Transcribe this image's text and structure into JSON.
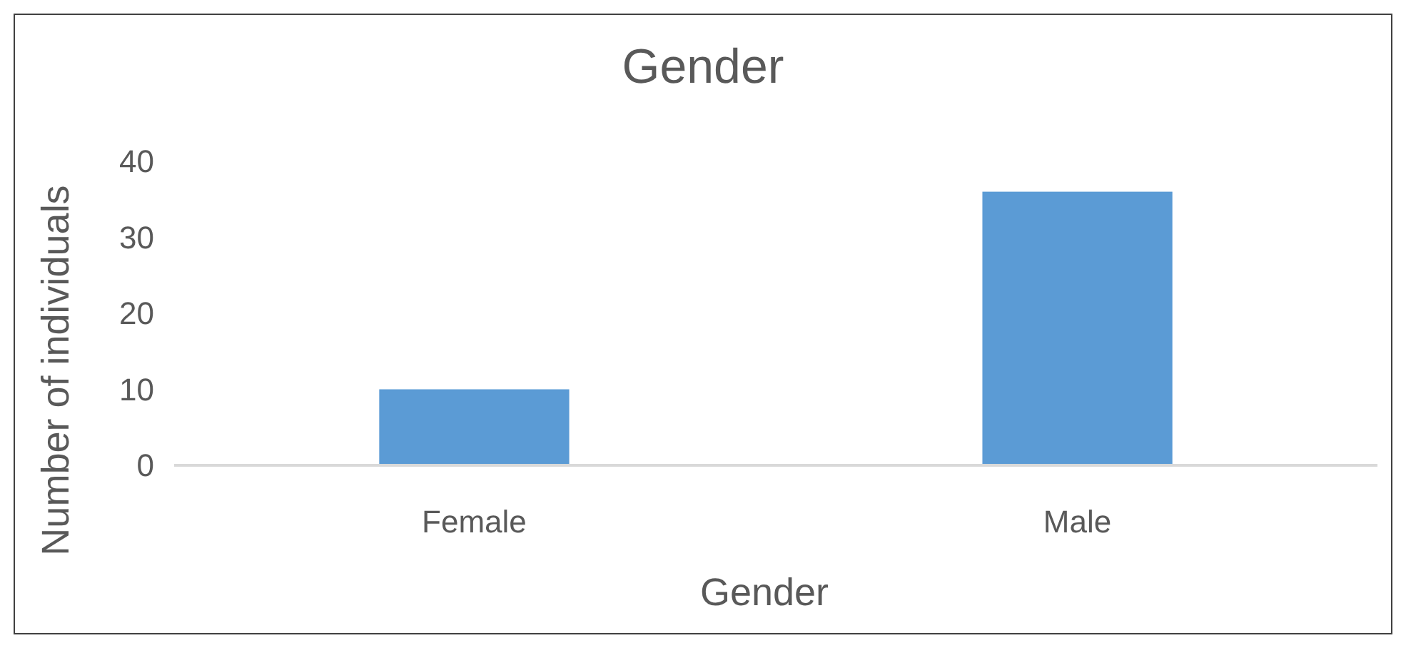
{
  "chart_data": {
    "type": "bar",
    "title": "Gender",
    "xlabel": "Gender",
    "ylabel": "Number of individuals",
    "categories": [
      "Female",
      "Male"
    ],
    "values": [
      10,
      36
    ],
    "color": "#5b9bd5",
    "ylim": [
      0,
      40
    ],
    "yticks": [
      0,
      10,
      20,
      30,
      40
    ],
    "grid": false
  }
}
